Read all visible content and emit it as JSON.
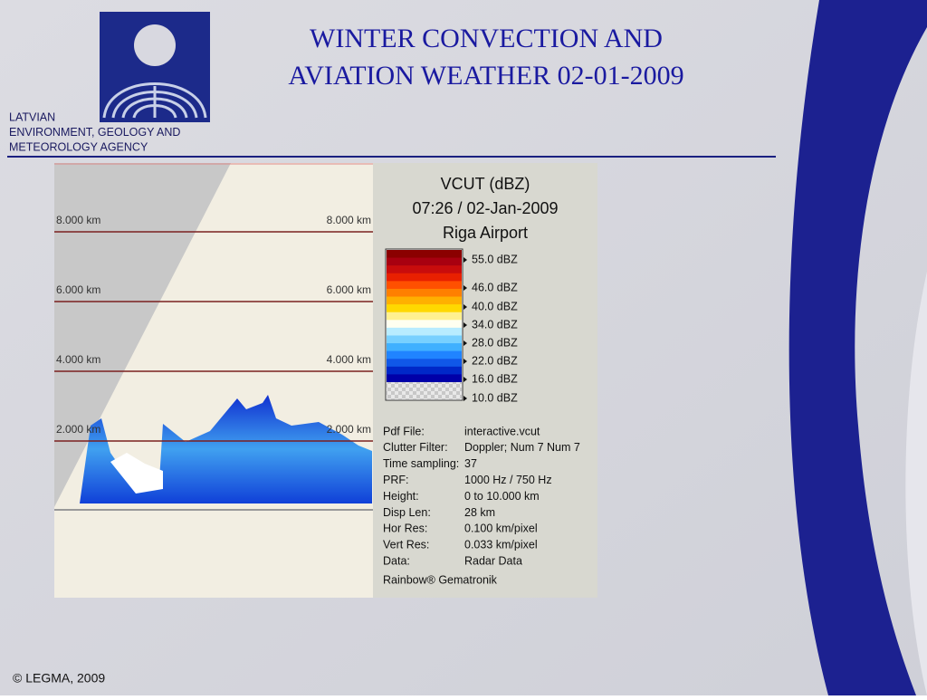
{
  "header": {
    "title_lines": [
      "WINTER CONVECTION AND",
      "AVIATION WEATHER 02-01-2009"
    ],
    "agency_lines": [
      "LATVIAN",
      "ENVIRONMENT, GEOLOGY AND",
      "METEOROLOGY AGENCY"
    ]
  },
  "radar": {
    "height_labels": [
      "8.000 km",
      "6.000 km",
      "4.000 km",
      "2.000 km"
    ]
  },
  "panel": {
    "title_lines": [
      "VCUT (dBZ)",
      "07:26 / 02-Jan-2009",
      "Riga Airport"
    ],
    "scale_labels": [
      "55.0 dBZ",
      "46.0 dBZ",
      "40.0 dBZ",
      "34.0 dBZ",
      "28.0 dBZ",
      "22.0 dBZ",
      "16.0 dBZ",
      "10.0 dBZ"
    ],
    "info": [
      [
        "Pdf File:",
        "interactive.vcut"
      ],
      [
        "Clutter Filter:",
        "Doppler; Num 7 Num 7"
      ],
      [
        "Time sampling:",
        "37"
      ],
      [
        "PRF:",
        "1000 Hz / 750 Hz"
      ],
      [
        "Height:",
        "0 to 10.000 km"
      ],
      [
        "Disp Len:",
        "28 km"
      ],
      [
        "Hor Res:",
        "0.100 km/pixel"
      ],
      [
        "Vert Res:",
        "0.033 km/pixel"
      ],
      [
        "Data:",
        "Radar Data"
      ]
    ],
    "credit": "Rainbow® Gematronik"
  },
  "footer": "© LEGMA, 2009"
}
